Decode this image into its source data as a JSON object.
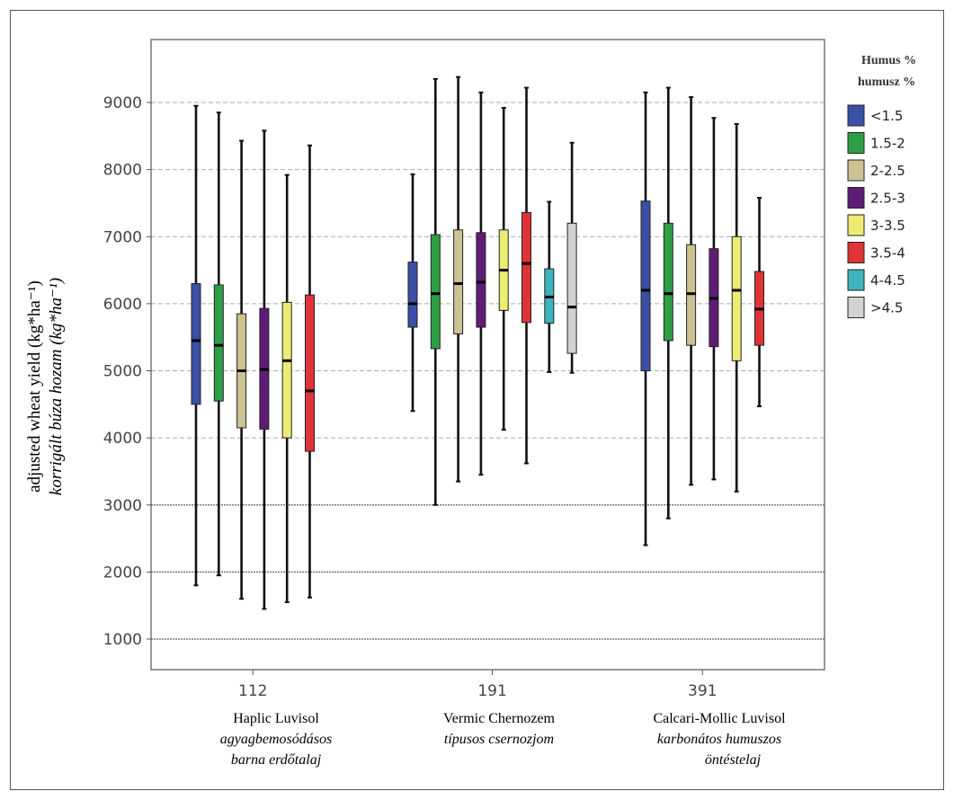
{
  "chart_data": {
    "type": "boxplot",
    "title": "",
    "ylabel": "adjusted wheat yield (kg*ha⁻¹)",
    "ylabel_italic": "korrigált búza hozam (kg*ha⁻¹)",
    "ylim": [
      500,
      10000
    ],
    "yticks": [
      1000,
      2000,
      3000,
      4000,
      5000,
      6000,
      7000,
      8000,
      9000
    ],
    "grid": true,
    "legend_position": "right",
    "legend_title": [
      "Humus %",
      "humusz %"
    ],
    "categories": [
      "112",
      "191",
      "391"
    ],
    "category_captions": [
      {
        "line1": "Haplic Luvisol",
        "line2": "agyagbemosódásos",
        "line3": "barna erdőtalaj"
      },
      {
        "line1": "Vermic Chernozem",
        "line2": "típusos csernozjom",
        "line3": ""
      },
      {
        "line1": "Calcari-Mollic Luvisol",
        "line2": "karbonátos humuszos",
        "line3": "öntéstelaj"
      }
    ],
    "series": [
      {
        "name": "<1.5",
        "color": "#3a4fa6",
        "boxes": [
          {
            "min": 1800,
            "q1": 4500,
            "median": 5450,
            "q3": 6300,
            "max": 8950
          },
          {
            "min": 4400,
            "q1": 5650,
            "median": 6000,
            "q3": 6620,
            "max": 7930
          },
          {
            "min": 2400,
            "q1": 5000,
            "median": 6200,
            "q3": 7530,
            "max": 9150
          }
        ]
      },
      {
        "name": "1.5-2",
        "color": "#2c9e45",
        "boxes": [
          {
            "min": 1950,
            "q1": 4550,
            "median": 5380,
            "q3": 6280,
            "max": 8850
          },
          {
            "min": 3000,
            "q1": 5330,
            "median": 6150,
            "q3": 7030,
            "max": 9350
          },
          {
            "min": 2800,
            "q1": 5450,
            "median": 6150,
            "q3": 7200,
            "max": 9220
          }
        ]
      },
      {
        "name": "2-2.5",
        "color": "#cdc292",
        "boxes": [
          {
            "min": 1600,
            "q1": 4150,
            "median": 5000,
            "q3": 5850,
            "max": 8430
          },
          {
            "min": 3350,
            "q1": 5550,
            "median": 6300,
            "q3": 7100,
            "max": 9380
          },
          {
            "min": 3300,
            "q1": 5380,
            "median": 6150,
            "q3": 6880,
            "max": 9080
          }
        ]
      },
      {
        "name": "2.5-3",
        "color": "#5f1c77",
        "boxes": [
          {
            "min": 1450,
            "q1": 4130,
            "median": 5020,
            "q3": 5930,
            "max": 8580
          },
          {
            "min": 3450,
            "q1": 5650,
            "median": 6320,
            "q3": 7060,
            "max": 9150
          },
          {
            "min": 3380,
            "q1": 5360,
            "median": 6080,
            "q3": 6820,
            "max": 8770
          }
        ]
      },
      {
        "name": "3-3.5",
        "color": "#ecec72",
        "boxes": [
          {
            "min": 1550,
            "q1": 4000,
            "median": 5150,
            "q3": 6020,
            "max": 7920
          },
          {
            "min": 4120,
            "q1": 5900,
            "median": 6500,
            "q3": 7100,
            "max": 8920
          },
          {
            "min": 3200,
            "q1": 5150,
            "median": 6200,
            "q3": 7000,
            "max": 8680
          }
        ]
      },
      {
        "name": "3.5-4",
        "color": "#e03338",
        "boxes": [
          {
            "min": 1620,
            "q1": 3800,
            "median": 4700,
            "q3": 6130,
            "max": 8360
          },
          {
            "min": 3620,
            "q1": 5720,
            "median": 6600,
            "q3": 7360,
            "max": 9220
          },
          {
            "min": 4470,
            "q1": 5380,
            "median": 5920,
            "q3": 6480,
            "max": 7580
          }
        ]
      },
      {
        "name": "4-4.5",
        "color": "#3bb4bd",
        "boxes": [
          null,
          {
            "min": 4980,
            "q1": 5710,
            "median": 6100,
            "q3": 6520,
            "max": 7520
          },
          null
        ]
      },
      {
        "name": ">4.5",
        "color": "#d2d2d2",
        "boxes": [
          null,
          {
            "min": 4970,
            "q1": 5260,
            "median": 5950,
            "q3": 7200,
            "max": 8400
          },
          null
        ]
      }
    ]
  }
}
